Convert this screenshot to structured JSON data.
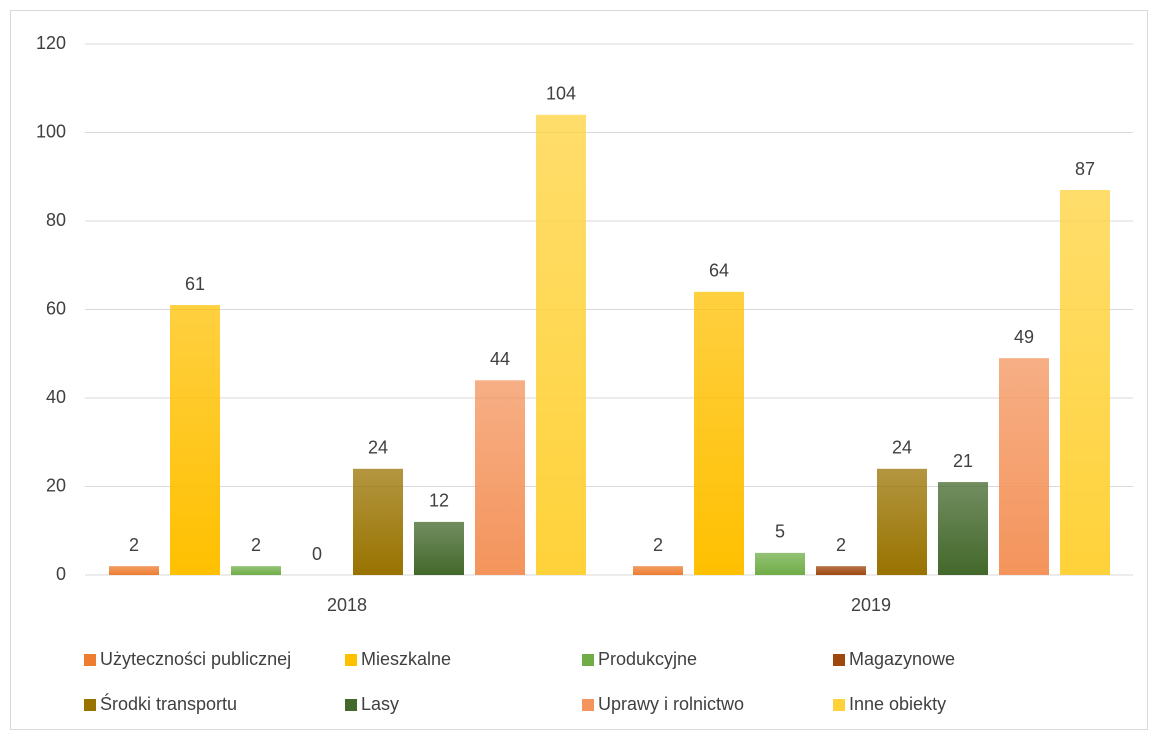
{
  "chart_data": {
    "type": "bar",
    "categories": [
      "2018",
      "2019"
    ],
    "series": [
      {
        "name": "Użyteczności publicznej",
        "color": "#ed7d31",
        "values": [
          2,
          2
        ]
      },
      {
        "name": "Mieszkalne",
        "color": "#ffc000",
        "values": [
          61,
          64
        ]
      },
      {
        "name": "Produkcyjne",
        "color": "#70ad47",
        "values": [
          2,
          5
        ]
      },
      {
        "name": "Magazynowe",
        "color": "#9e480e",
        "values": [
          0,
          2
        ]
      },
      {
        "name": "Środki transportu",
        "color": "#997300",
        "values": [
          24,
          24
        ]
      },
      {
        "name": "Lasy",
        "color": "#43682b",
        "values": [
          12,
          21
        ]
      },
      {
        "name": "Uprawy i rolnictwo",
        "color": "#f4945c",
        "values": [
          44,
          49
        ]
      },
      {
        "name": "Inne obiekty",
        "color": "#ffd23a",
        "values": [
          104,
          87
        ]
      }
    ],
    "ylim": [
      0,
      120
    ],
    "yticks": [
      0,
      20,
      40,
      60,
      80,
      100,
      120
    ],
    "grid": true,
    "legend": "bottom"
  }
}
